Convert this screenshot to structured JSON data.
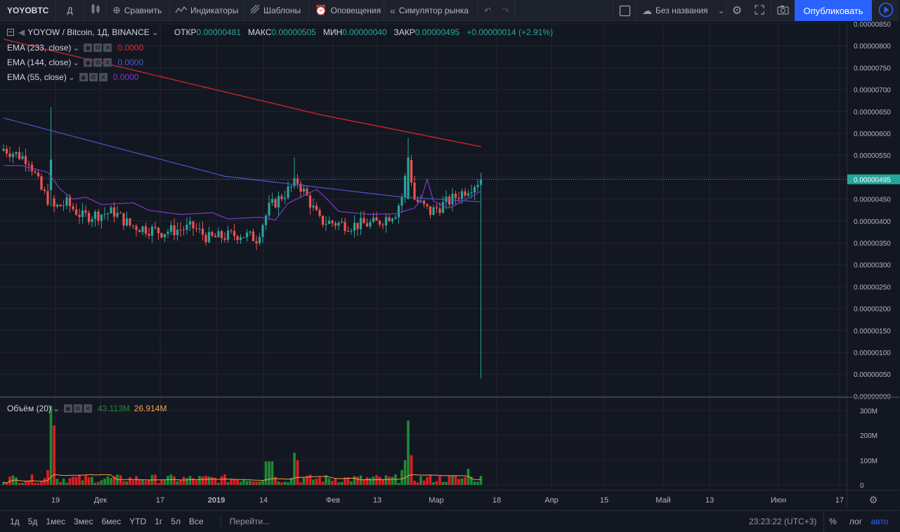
{
  "toolbar": {
    "symbol": "YOYOBTC",
    "interval": "Д",
    "compare": "Сравнить",
    "indicators": "Индикаторы",
    "templates": "Шаблоны",
    "alerts": "Оповещения",
    "replay": "Симулятор рынка",
    "layout_name": "Без названия",
    "publish": "Опубликовать"
  },
  "legend": {
    "title": "YOYOW / Bitcoin, 1Д, BINANCE",
    "open_label": "ОТКР",
    "open": "0.00000481",
    "high_label": "МАКС",
    "high": "0.00000505",
    "low_label": "МИН",
    "low": "0.00000040",
    "close_label": "ЗАКР",
    "close": "0.00000495",
    "change": "+0.00000014 (+2.91%)"
  },
  "indicators": [
    {
      "name": "EMA (233, close)",
      "value": "0.0000",
      "color": "#e0282e"
    },
    {
      "name": "EMA (144, close)",
      "value": "0.0000",
      "color": "#4a58c8"
    },
    {
      "name": "EMA (55, close)",
      "value": "0.0000",
      "color": "#7b3ac2"
    }
  ],
  "volume_legend": {
    "name": "Объём (20)",
    "value": "43.113M",
    "ma": "26.914M"
  },
  "colors": {
    "up": "#26a69a",
    "down": "#ef5350",
    "vol_up": "#1e8a34",
    "vol_down": "#e21d22",
    "last_price": "#26a69a",
    "ema233": "#e0282e",
    "ema144": "#4a58c8",
    "ema55": "#7b3ac2",
    "vol_ma": "#f7a146"
  },
  "chart_data": {
    "type": "candlestick",
    "price_scale": {
      "ticks": [
        "0.00000850",
        "0.00000800",
        "0.00000750",
        "0.00000700",
        "0.00000650",
        "0.00000600",
        "0.00000550",
        "0.00000500",
        "0.00000450",
        "0.00000400",
        "0.00000350",
        "0.00000300",
        "0.00000250",
        "0.00000200",
        "0.00000150",
        "0.00000100",
        "0.00000050",
        "0.00000000"
      ],
      "last": "0.00000495"
    },
    "volume_scale": {
      "ticks": [
        "300M",
        "200M",
        "100M",
        "0"
      ]
    },
    "time_ticks": [
      "19",
      "Дек",
      "17",
      "2019",
      "14",
      "Фев",
      "13",
      "Мар",
      "18",
      "Апр",
      "15",
      "Май",
      "13",
      "Июн",
      "17"
    ],
    "bold_time_ticks": [
      "2019"
    ]
  },
  "bottom": {
    "ranges": [
      "1д",
      "5д",
      "1мес",
      "3мес",
      "6мес",
      "YTD",
      "1г",
      "5л",
      "Все"
    ],
    "goto": "Перейти...",
    "clock": "23:23:22 (UTC+3)",
    "percent": "%",
    "log": "лог",
    "auto": "авто"
  }
}
